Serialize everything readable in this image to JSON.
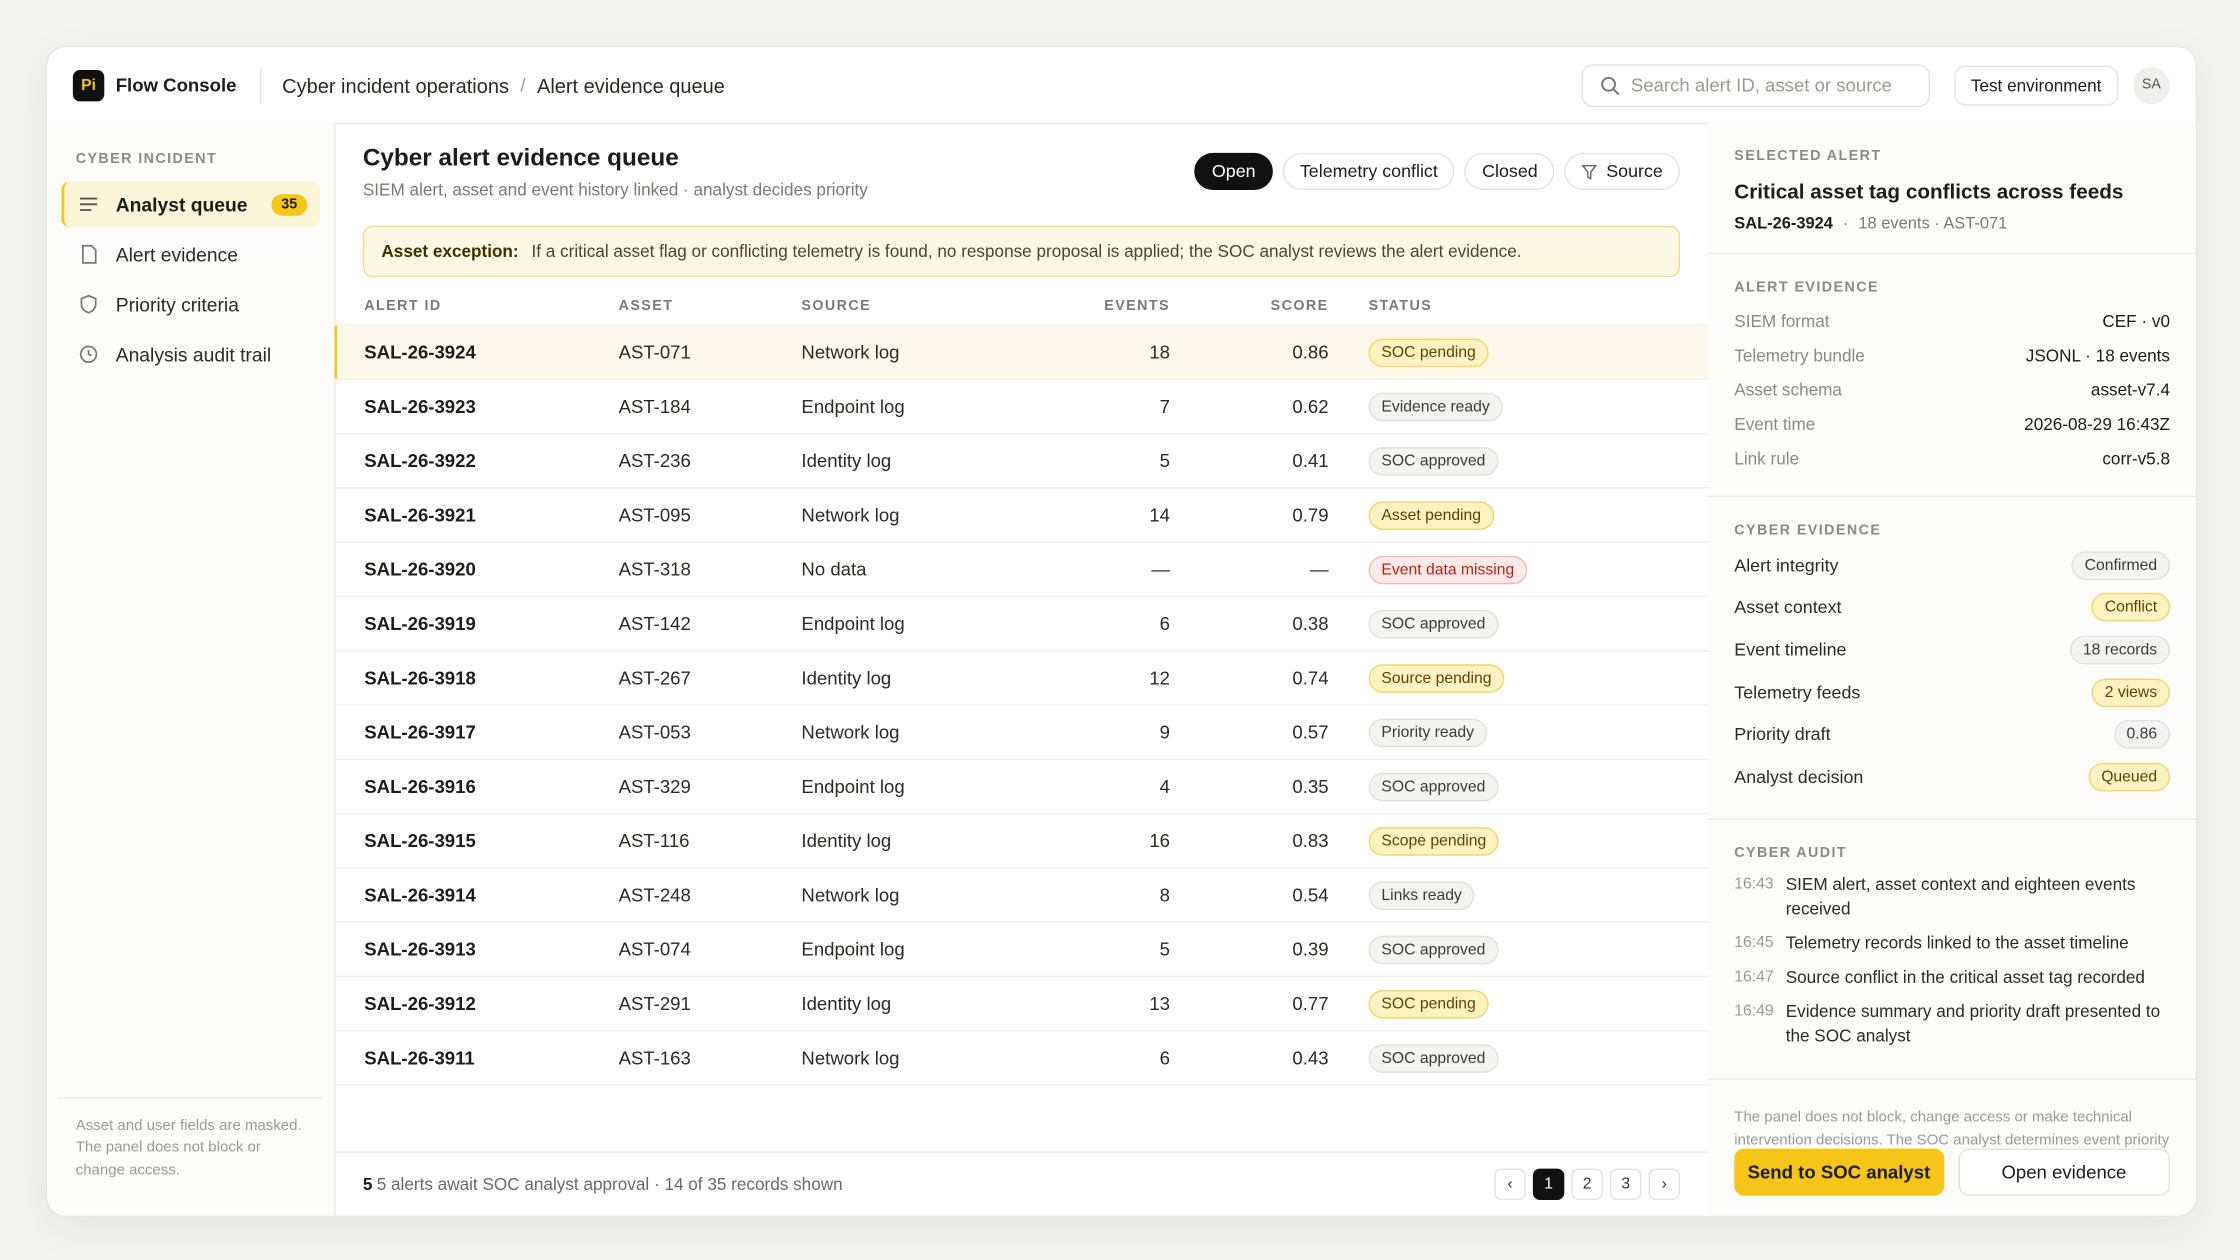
{
  "header": {
    "logo": "Pi",
    "brand": "Flow Console",
    "breadcrumb": [
      "Cyber incident operations",
      "Alert evidence queue"
    ],
    "separator": "/",
    "search_placeholder": "Search alert ID, asset or source",
    "environment": "Test environment",
    "avatar": "SA"
  },
  "sidebar": {
    "section": "CYBER INCIDENT",
    "items": [
      {
        "label": "Analyst queue",
        "badge": "35",
        "active": true
      },
      {
        "label": "Alert evidence"
      },
      {
        "label": "Priority criteria"
      },
      {
        "label": "Analysis audit trail"
      }
    ],
    "note": "Asset and user fields are masked. The panel does not block or change access."
  },
  "main": {
    "title": "Cyber alert evidence queue",
    "subtitle": "SIEM alert, asset and event history linked · analyst decides priority",
    "filters": [
      {
        "label": "Open",
        "active": true
      },
      {
        "label": "Telemetry conflict"
      },
      {
        "label": "Closed"
      },
      {
        "label": "Source"
      }
    ],
    "notice": {
      "label": "Asset exception:",
      "text": "If a critical asset flag or conflicting telemetry is found, no response proposal is applied; the SOC analyst reviews the alert evidence."
    },
    "table": {
      "columns": [
        "ALERT ID",
        "ASSET",
        "SOURCE",
        "EVENTS",
        "SCORE",
        "STATUS"
      ],
      "selected_row": 0,
      "rows": [
        {
          "cells": [
            "SAL-26-3924",
            "AST-071",
            "Network log",
            "18",
            "0.86",
            "SOC pending"
          ],
          "tone": "yellow"
        },
        {
          "cells": [
            "SAL-26-3923",
            "AST-184",
            "Endpoint log",
            "7",
            "0.62",
            "Evidence ready"
          ],
          "tone": "gray"
        },
        {
          "cells": [
            "SAL-26-3922",
            "AST-236",
            "Identity log",
            "5",
            "0.41",
            "SOC approved"
          ],
          "tone": "gray"
        },
        {
          "cells": [
            "SAL-26-3921",
            "AST-095",
            "Network log",
            "14",
            "0.79",
            "Asset pending"
          ],
          "tone": "yellow"
        },
        {
          "cells": [
            "SAL-26-3920",
            "AST-318",
            "No data",
            "—",
            "—",
            "Event data missing"
          ],
          "tone": "red"
        },
        {
          "cells": [
            "SAL-26-3919",
            "AST-142",
            "Endpoint log",
            "6",
            "0.38",
            "SOC approved"
          ],
          "tone": "gray"
        },
        {
          "cells": [
            "SAL-26-3918",
            "AST-267",
            "Identity log",
            "12",
            "0.74",
            "Source pending"
          ],
          "tone": "yellow"
        },
        {
          "cells": [
            "SAL-26-3917",
            "AST-053",
            "Network log",
            "9",
            "0.57",
            "Priority ready"
          ],
          "tone": "gray"
        },
        {
          "cells": [
            "SAL-26-3916",
            "AST-329",
            "Endpoint log",
            "4",
            "0.35",
            "SOC approved"
          ],
          "tone": "gray"
        },
        {
          "cells": [
            "SAL-26-3915",
            "AST-116",
            "Identity log",
            "16",
            "0.83",
            "Scope pending"
          ],
          "tone": "yellow"
        },
        {
          "cells": [
            "SAL-26-3914",
            "AST-248",
            "Network log",
            "8",
            "0.54",
            "Links ready"
          ],
          "tone": "gray"
        },
        {
          "cells": [
            "SAL-26-3913",
            "AST-074",
            "Endpoint log",
            "5",
            "0.39",
            "SOC approved"
          ],
          "tone": "gray"
        },
        {
          "cells": [
            "SAL-26-3912",
            "AST-291",
            "Identity log",
            "13",
            "0.77",
            "SOC pending"
          ],
          "tone": "yellow"
        },
        {
          "cells": [
            "SAL-26-3911",
            "AST-163",
            "Network log",
            "6",
            "0.43",
            "SOC approved"
          ],
          "tone": "gray"
        }
      ]
    },
    "footer": {
      "count": "5",
      "text": "5 alerts await SOC analyst approval · 14 of 35 records shown"
    },
    "pagination": {
      "prev": "‹",
      "pages": [
        "1",
        "2",
        "3"
      ],
      "next": "›",
      "current": 0
    }
  },
  "panel": {
    "selected": {
      "section": "SELECTED ALERT",
      "title": "Critical asset tag conflicts across feeds",
      "id": "SAL-26-3924",
      "separator": "·",
      "meta": "18 events · AST-071"
    },
    "alert_evidence": {
      "section": "ALERT EVIDENCE",
      "rows": [
        [
          "SIEM format",
          "CEF · v0"
        ],
        [
          "Telemetry bundle",
          "JSONL · 18 events"
        ],
        [
          "Asset schema",
          "asset-v7.4"
        ],
        [
          "Event time",
          "2026-08-29 16:43Z"
        ],
        [
          "Link rule",
          "corr-v5.8"
        ]
      ]
    },
    "cyber_evidence": {
      "section": "CYBER EVIDENCE",
      "rows": [
        {
          "label": "Alert integrity",
          "value": "Confirmed",
          "tone": "gray"
        },
        {
          "label": "Asset context",
          "value": "Conflict",
          "tone": "yellow"
        },
        {
          "label": "Event timeline",
          "value": "18 records",
          "tone": "gray"
        },
        {
          "label": "Telemetry feeds",
          "value": "2 views",
          "tone": "yellow"
        },
        {
          "label": "Priority draft",
          "value": "0.86",
          "tone": "gray"
        },
        {
          "label": "Analyst decision",
          "value": "Queued",
          "tone": "yellow"
        }
      ]
    },
    "audit": {
      "section": "CYBER AUDIT",
      "items": [
        {
          "time": "16:43",
          "text": "SIEM alert, asset context and eighteen events received"
        },
        {
          "time": "16:45",
          "text": "Telemetry records linked to the asset timeline"
        },
        {
          "time": "16:47",
          "text": "Source conflict in the critical asset tag recorded"
        },
        {
          "time": "16:49",
          "text": "Evidence summary and priority draft presented to the SOC analyst"
        }
      ]
    },
    "note": "The panel does not block, change access or make technical intervention decisions. The SOC analyst determines event priority and the next step.",
    "buttons": [
      "Send to SOC analyst",
      "Open evidence"
    ]
  }
}
